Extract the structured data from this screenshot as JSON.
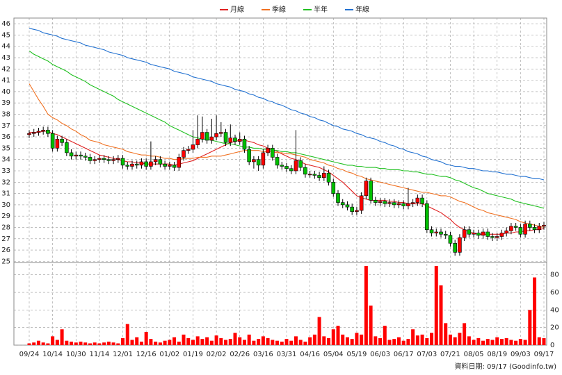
{
  "chart_data": {
    "type": "candlestick",
    "legend": "top",
    "grid": true,
    "up_color": "#ff0000",
    "down_color": "#00c000",
    "footnote": "資料日期: 09/17 (Goodinfo.tw)",
    "ylim": [
      24.9,
      46.5
    ],
    "yticks": [
      25,
      26,
      27,
      28,
      29,
      30,
      31,
      32,
      33,
      34,
      35,
      36,
      37,
      38,
      39,
      40,
      41,
      42,
      43,
      44,
      45,
      46
    ],
    "categories": [
      "09/24",
      null,
      null,
      null,
      null,
      "10/14",
      null,
      null,
      null,
      null,
      "10/30",
      null,
      null,
      null,
      null,
      "11/14",
      null,
      null,
      null,
      null,
      "12/01",
      null,
      null,
      null,
      null,
      "12/16",
      null,
      null,
      null,
      null,
      "01/02",
      null,
      null,
      null,
      null,
      "01/19",
      null,
      null,
      null,
      null,
      "02/02",
      null,
      null,
      null,
      null,
      "02/26",
      null,
      null,
      null,
      null,
      "03/16",
      null,
      null,
      null,
      null,
      "03/31",
      null,
      null,
      null,
      null,
      "04/16",
      null,
      null,
      null,
      null,
      "05/04",
      null,
      null,
      null,
      null,
      "05/19",
      null,
      null,
      null,
      null,
      "06/03",
      null,
      null,
      null,
      null,
      "06/17",
      null,
      null,
      null,
      null,
      "07/03",
      null,
      null,
      null,
      null,
      "07/21",
      null,
      null,
      null,
      null,
      "08/05",
      null,
      null,
      null,
      null,
      "08/19",
      null,
      null,
      null,
      null,
      "09/03",
      null,
      null,
      null,
      null,
      "09/17"
    ],
    "open": [
      36.2,
      36.3,
      36.4,
      36.5,
      36.6,
      36.3,
      35.0,
      35.8,
      35.5,
      34.6,
      34.3,
      34.4,
      34.3,
      34.2,
      33.9,
      34.0,
      34.1,
      34.0,
      33.9,
      34.0,
      34.1,
      33.5,
      33.4,
      33.6,
      33.5,
      33.8,
      33.4,
      33.8,
      34.0,
      33.6,
      33.4,
      33.5,
      33.3,
      34.2,
      34.8,
      34.9,
      35.3,
      35.8,
      36.4,
      35.7,
      36.0,
      36.3,
      36.4,
      35.5,
      35.9,
      35.6,
      35.8,
      34.9,
      33.8,
      34.0,
      33.5,
      34.6,
      35.0,
      34.2,
      33.5,
      33.4,
      33.2,
      33.0,
      33.9,
      33.3,
      32.7,
      32.7,
      32.6,
      32.4,
      32.8,
      32.0,
      31.0,
      30.2,
      30.0,
      29.8,
      29.4,
      29.5,
      30.8,
      32.1,
      30.4,
      30.2,
      30.3,
      30.1,
      30.2,
      30.0,
      30.1,
      29.9,
      30.1,
      30.2,
      30.6,
      30.1,
      27.8,
      27.5,
      27.6,
      27.4,
      27.3,
      26.6,
      25.8,
      27.1,
      27.8,
      27.4,
      27.5,
      27.3,
      27.6,
      27.2,
      27.1,
      27.2,
      27.5,
      27.7,
      28.1,
      28.0,
      27.4,
      28.3,
      28.0,
      27.8,
      28.1
    ],
    "high": [
      36.6,
      36.7,
      36.8,
      36.9,
      36.9,
      36.6,
      36.1,
      36.1,
      35.8,
      34.9,
      34.7,
      34.7,
      34.6,
      34.5,
      34.3,
      34.4,
      34.4,
      34.3,
      34.3,
      34.4,
      34.4,
      33.8,
      33.9,
      33.9,
      34.1,
      34.1,
      35.6,
      34.3,
      34.3,
      33.9,
      33.8,
      33.8,
      34.5,
      35.1,
      35.2,
      36.6,
      37.9,
      37.8,
      36.7,
      37.6,
      37.9,
      37.3,
      36.7,
      37.1,
      36.2,
      36.4,
      36.1,
      35.2,
      34.3,
      34.3,
      34.9,
      35.3,
      35.3,
      34.5,
      33.8,
      33.7,
      33.5,
      36.6,
      34.2,
      33.6,
      33.0,
      33.0,
      32.9,
      33.4,
      33.1,
      32.3,
      31.3,
      30.5,
      30.3,
      30.1,
      29.8,
      31.1,
      32.4,
      32.4,
      30.7,
      30.6,
      30.6,
      30.5,
      30.5,
      30.4,
      30.4,
      31.5,
      30.5,
      30.9,
      30.9,
      30.4,
      28.1,
      27.9,
      27.9,
      27.7,
      27.6,
      26.9,
      27.4,
      28.1,
      28.1,
      27.8,
      27.8,
      27.9,
      27.9,
      27.5,
      27.5,
      27.8,
      28.0,
      28.4,
      28.4,
      28.3,
      28.6,
      28.6,
      28.3,
      28.4,
      28.5
    ],
    "low": [
      35.9,
      36.0,
      36.1,
      36.2,
      36.0,
      34.7,
      34.7,
      35.2,
      34.3,
      34.0,
      34.0,
      34.0,
      33.9,
      33.6,
      33.6,
      33.7,
      33.7,
      33.6,
      33.6,
      33.7,
      33.2,
      33.1,
      33.1,
      33.2,
      33.2,
      33.1,
      33.1,
      33.5,
      33.3,
      33.1,
      33.1,
      33.0,
      33.0,
      33.9,
      34.5,
      34.6,
      35.0,
      35.5,
      35.4,
      35.4,
      35.7,
      36.0,
      35.2,
      35.2,
      35.3,
      35.3,
      34.6,
      33.5,
      33.2,
      33.0,
      33.2,
      34.3,
      33.9,
      33.2,
      33.1,
      32.9,
      32.7,
      32.7,
      33.0,
      32.4,
      32.4,
      32.3,
      32.1,
      32.1,
      31.7,
      30.7,
      29.9,
      29.7,
      29.5,
      29.1,
      29.1,
      29.2,
      30.5,
      30.1,
      29.9,
      29.9,
      29.8,
      29.8,
      29.7,
      29.7,
      29.6,
      29.6,
      29.8,
      29.9,
      29.8,
      27.5,
      27.2,
      27.2,
      27.1,
      27.0,
      26.3,
      25.5,
      25.5,
      26.8,
      27.1,
      27.1,
      27.0,
      27.0,
      26.9,
      26.8,
      26.8,
      26.9,
      27.2,
      27.4,
      27.7,
      27.1,
      27.1,
      27.7,
      27.5,
      27.5,
      27.8
    ],
    "close": [
      36.3,
      36.4,
      36.5,
      36.6,
      36.3,
      35.0,
      35.8,
      35.5,
      34.6,
      34.3,
      34.4,
      34.3,
      34.2,
      33.9,
      34.0,
      34.1,
      34.0,
      33.9,
      34.0,
      34.1,
      33.5,
      33.4,
      33.6,
      33.5,
      33.8,
      33.4,
      33.8,
      34.0,
      33.6,
      33.4,
      33.5,
      33.3,
      34.2,
      34.8,
      34.9,
      35.3,
      35.8,
      36.4,
      35.7,
      36.0,
      36.3,
      36.4,
      35.5,
      35.9,
      35.6,
      35.8,
      34.9,
      33.8,
      34.0,
      33.5,
      34.6,
      35.0,
      34.2,
      33.5,
      33.4,
      33.2,
      33.0,
      33.9,
      33.3,
      32.7,
      32.7,
      32.6,
      32.4,
      32.8,
      32.0,
      31.0,
      30.2,
      30.0,
      29.8,
      29.4,
      29.5,
      30.8,
      32.1,
      30.4,
      30.2,
      30.3,
      30.1,
      30.2,
      30.0,
      30.1,
      29.9,
      30.1,
      30.2,
      30.6,
      30.1,
      27.8,
      27.5,
      27.6,
      27.4,
      27.3,
      26.6,
      25.8,
      27.1,
      27.8,
      27.4,
      27.5,
      27.3,
      27.6,
      27.2,
      27.1,
      27.2,
      27.5,
      27.7,
      28.1,
      28.0,
      27.4,
      28.3,
      28.0,
      27.8,
      28.1,
      28.2
    ],
    "series": [
      {
        "name": "月線",
        "color": "#e02020",
        "values": [
          36.4,
          36.4,
          36.4,
          36.5,
          36.5,
          36.3,
          36.2,
          36.0,
          35.8,
          35.6,
          35.4,
          35.2,
          35.0,
          34.8,
          34.6,
          34.4,
          34.3,
          34.2,
          34.1,
          34.0,
          33.9,
          33.8,
          33.8,
          33.7,
          33.7,
          33.6,
          33.6,
          33.6,
          33.6,
          33.6,
          33.6,
          33.5,
          33.6,
          33.7,
          33.8,
          33.9,
          34.1,
          34.3,
          34.5,
          34.7,
          34.9,
          35.1,
          35.3,
          35.5,
          35.6,
          35.7,
          35.7,
          35.6,
          35.5,
          35.3,
          35.2,
          35.0,
          34.9,
          34.7,
          34.5,
          34.3,
          34.1,
          34.0,
          33.8,
          33.6,
          33.5,
          33.4,
          33.3,
          33.1,
          32.9,
          32.6,
          32.3,
          32.0,
          31.6,
          31.2,
          30.8,
          30.6,
          30.5,
          30.4,
          30.4,
          30.4,
          30.4,
          30.3,
          30.3,
          30.2,
          30.2,
          30.1,
          30.1,
          30.1,
          30.1,
          29.9,
          29.7,
          29.5,
          29.3,
          29.0,
          28.7,
          28.3,
          28.0,
          27.8,
          27.6,
          27.5,
          27.4,
          27.4,
          27.4,
          27.4,
          27.4,
          27.4,
          27.5,
          27.5,
          27.6,
          27.6,
          27.7,
          27.7,
          27.8,
          27.8,
          27.9
        ]
      },
      {
        "name": "季線",
        "color": "#f07020",
        "values": [
          40.7,
          40.0,
          39.3,
          38.7,
          38.0,
          37.7,
          37.5,
          37.2,
          37.0,
          36.7,
          36.5,
          36.2,
          36.0,
          35.7,
          35.6,
          35.5,
          35.3,
          35.2,
          35.1,
          35.0,
          34.9,
          34.7,
          34.6,
          34.5,
          34.4,
          34.4,
          34.3,
          34.3,
          34.2,
          34.1,
          34.1,
          34.0,
          34.0,
          34.1,
          34.1,
          34.1,
          34.2,
          34.2,
          34.2,
          34.3,
          34.3,
          34.3,
          34.4,
          34.5,
          34.6,
          34.7,
          34.8,
          34.8,
          34.8,
          34.8,
          34.7,
          34.7,
          34.7,
          34.6,
          34.6,
          34.5,
          34.5,
          34.4,
          34.3,
          34.2,
          34.0,
          33.9,
          33.8,
          33.7,
          33.5,
          33.4,
          33.2,
          33.1,
          32.9,
          32.8,
          32.6,
          32.5,
          32.3,
          32.2,
          32.1,
          32.0,
          31.9,
          31.8,
          31.7,
          31.6,
          31.5,
          31.4,
          31.3,
          31.2,
          31.1,
          31.1,
          31.0,
          30.9,
          30.8,
          30.8,
          30.7,
          30.5,
          30.3,
          30.2,
          30.0,
          29.8,
          29.6,
          29.5,
          29.3,
          29.2,
          29.1,
          29.0,
          28.9,
          28.8,
          28.7,
          28.5,
          28.4,
          28.3,
          28.2,
          28.1,
          28.0
        ]
      },
      {
        "name": "半年",
        "color": "#20c020",
        "values": [
          43.6,
          43.3,
          43.1,
          42.9,
          42.7,
          42.4,
          42.2,
          42.0,
          41.8,
          41.5,
          41.3,
          41.1,
          40.9,
          40.6,
          40.4,
          40.2,
          40.0,
          39.8,
          39.6,
          39.3,
          39.1,
          38.9,
          38.7,
          38.5,
          38.3,
          38.1,
          37.9,
          37.7,
          37.5,
          37.3,
          37.0,
          36.8,
          36.6,
          36.4,
          36.2,
          36.0,
          35.9,
          35.8,
          35.8,
          35.7,
          35.6,
          35.5,
          35.4,
          35.4,
          35.3,
          35.2,
          35.1,
          35.1,
          35.0,
          35.0,
          34.9,
          34.9,
          34.8,
          34.8,
          34.7,
          34.7,
          34.6,
          34.6,
          34.5,
          34.4,
          34.3,
          34.2,
          34.1,
          34.0,
          33.9,
          33.8,
          33.7,
          33.6,
          33.5,
          33.5,
          33.4,
          33.4,
          33.3,
          33.3,
          33.3,
          33.2,
          33.2,
          33.1,
          33.1,
          33.1,
          33.0,
          33.0,
          32.9,
          32.9,
          32.8,
          32.7,
          32.7,
          32.6,
          32.5,
          32.5,
          32.4,
          32.2,
          32.1,
          31.9,
          31.7,
          31.5,
          31.4,
          31.2,
          31.0,
          30.9,
          30.8,
          30.7,
          30.6,
          30.5,
          30.3,
          30.2,
          30.1,
          30.0,
          29.9,
          29.8,
          29.7
        ]
      },
      {
        "name": "年線",
        "color": "#2070d0",
        "values": [
          45.6,
          45.5,
          45.4,
          45.2,
          45.1,
          45.0,
          44.9,
          44.7,
          44.6,
          44.5,
          44.4,
          44.3,
          44.1,
          44.0,
          43.9,
          43.8,
          43.7,
          43.5,
          43.4,
          43.3,
          43.2,
          43.0,
          42.9,
          42.8,
          42.7,
          42.6,
          42.4,
          42.3,
          42.2,
          42.1,
          42.0,
          41.8,
          41.7,
          41.6,
          41.5,
          41.3,
          41.2,
          41.1,
          41.0,
          40.9,
          40.7,
          40.6,
          40.5,
          40.4,
          40.2,
          40.1,
          40.0,
          39.8,
          39.7,
          39.5,
          39.4,
          39.2,
          39.1,
          38.9,
          38.8,
          38.6,
          38.4,
          38.3,
          38.1,
          38.0,
          37.8,
          37.7,
          37.5,
          37.4,
          37.2,
          37.0,
          36.9,
          36.7,
          36.6,
          36.5,
          36.3,
          36.2,
          36.0,
          35.9,
          35.8,
          35.6,
          35.5,
          35.3,
          35.2,
          35.0,
          34.9,
          34.7,
          34.6,
          34.5,
          34.3,
          34.2,
          34.0,
          33.9,
          33.8,
          33.6,
          33.5,
          33.4,
          33.4,
          33.3,
          33.2,
          33.2,
          33.1,
          33.0,
          33.0,
          32.9,
          32.9,
          32.8,
          32.7,
          32.7,
          32.6,
          32.5,
          32.5,
          32.4,
          32.3,
          32.3,
          32.2
        ]
      }
    ],
    "volume": {
      "color": "#ff0000",
      "ylim": [
        0,
        94
      ],
      "yticks": [
        0,
        20,
        40,
        60,
        80
      ],
      "values": [
        2,
        3,
        5,
        3,
        2,
        10,
        6,
        18,
        5,
        4,
        3,
        4,
        3,
        2,
        3,
        2,
        3,
        4,
        3,
        2,
        8,
        24,
        6,
        9,
        4,
        15,
        7,
        4,
        3,
        5,
        6,
        9,
        4,
        12,
        8,
        6,
        10,
        7,
        9,
        5,
        11,
        8,
        6,
        7,
        14,
        9,
        6,
        12,
        5,
        7,
        10,
        8,
        6,
        5,
        4,
        7,
        5,
        10,
        6,
        4,
        9,
        12,
        32,
        10,
        8,
        18,
        22,
        12,
        9,
        7,
        14,
        12,
        90,
        45,
        10,
        8,
        22,
        6,
        7,
        9,
        5,
        7,
        18,
        11,
        12,
        8,
        14,
        90,
        68,
        25,
        12,
        9,
        14,
        25,
        10,
        6,
        8,
        5,
        7,
        6,
        9,
        7,
        8,
        6,
        5,
        7,
        6,
        40,
        77,
        9,
        8
      ]
    }
  }
}
